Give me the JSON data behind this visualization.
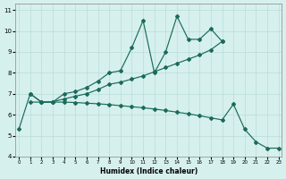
{
  "xlabel": "Humidex (Indice chaleur)",
  "bg_color": "#d6f0ee",
  "line_color": "#1a6b5a",
  "grid_color": "#b8ddd9",
  "xlim": [
    -0.3,
    23.3
  ],
  "ylim": [
    4,
    11.3
  ],
  "xticks": [
    0,
    1,
    2,
    3,
    4,
    5,
    6,
    7,
    8,
    9,
    10,
    11,
    12,
    13,
    14,
    15,
    16,
    17,
    18,
    19,
    20,
    21,
    22,
    23
  ],
  "yticks": [
    4,
    5,
    6,
    7,
    8,
    9,
    10,
    11
  ],
  "line1_x": [
    0,
    1,
    2,
    3,
    4,
    5,
    6,
    7,
    8,
    9,
    10,
    11,
    12,
    13,
    14,
    15,
    16,
    17,
    18
  ],
  "line1_y": [
    5.3,
    7.0,
    6.6,
    6.6,
    7.0,
    7.1,
    7.3,
    7.6,
    8.0,
    8.1,
    9.2,
    10.5,
    8.0,
    9.0,
    10.7,
    9.6,
    9.6,
    10.1,
    9.5
  ],
  "line2_x": [
    1,
    2,
    3,
    4,
    5,
    6,
    7,
    8,
    9,
    10,
    11,
    12,
    13,
    14,
    15,
    16,
    17,
    18
  ],
  "line2_y": [
    7.0,
    6.6,
    6.62,
    6.75,
    6.88,
    7.0,
    7.2,
    7.45,
    7.55,
    7.7,
    7.85,
    8.05,
    8.25,
    8.45,
    8.65,
    8.85,
    9.1,
    9.5
  ],
  "line3_x": [
    1,
    2,
    3,
    4,
    5,
    6,
    7,
    8,
    9,
    10,
    11,
    12,
    13,
    14,
    15,
    16,
    17,
    18,
    19,
    20,
    21,
    22,
    23
  ],
  "line3_y": [
    6.6,
    6.6,
    6.6,
    6.6,
    6.58,
    6.55,
    6.52,
    6.48,
    6.43,
    6.38,
    6.33,
    6.27,
    6.2,
    6.12,
    6.04,
    5.95,
    5.85,
    5.75,
    6.5,
    5.3,
    4.7,
    4.4,
    4.4
  ]
}
